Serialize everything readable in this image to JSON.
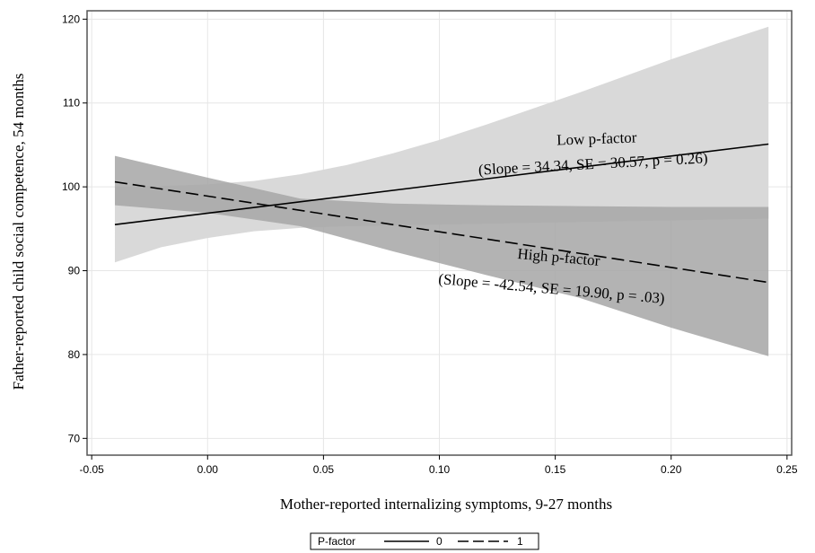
{
  "chart_data": {
    "type": "line",
    "xlabel": "Mother-reported internalizing symptoms, 9-27 months",
    "ylabel": "Father-reported child social competence, 54 months",
    "xlim": [
      -0.052,
      0.252
    ],
    "ylim": [
      68,
      121
    ],
    "xticks": [
      -0.05,
      0.0,
      0.05,
      0.1,
      0.15,
      0.2,
      0.25
    ],
    "xtick_labels": [
      "-0.05",
      "0.00",
      "0.05",
      "0.10",
      "0.15",
      "0.20",
      "0.25"
    ],
    "yticks": [
      70,
      80,
      90,
      100,
      110,
      120
    ],
    "ytick_labels": [
      "70",
      "80",
      "90",
      "100",
      "110",
      "120"
    ],
    "grid": true,
    "legend": {
      "title": "P-factor",
      "placement": "bottom-center",
      "entries": [
        {
          "label": "0",
          "style": "solid"
        },
        {
          "label": "1",
          "style": "dashed"
        }
      ]
    },
    "series": [
      {
        "label": "0",
        "line_style": "solid",
        "band_color": "#d9d9d9",
        "x": [
          -0.04,
          0.242
        ],
        "y": [
          95.5,
          105.1
        ],
        "ci_x": [
          -0.04,
          -0.02,
          0.0,
          0.02,
          0.04,
          0.06,
          0.08,
          0.1,
          0.12,
          0.14,
          0.16,
          0.18,
          0.2,
          0.22,
          0.242
        ],
        "ci_lower": [
          91.0,
          92.8,
          93.9,
          94.7,
          95.1,
          95.3,
          95.4,
          95.5,
          95.6,
          95.7,
          95.8,
          95.9,
          96.0,
          96.1,
          96.2
        ],
        "ci_upper": [
          100.0,
          100.1,
          100.3,
          100.7,
          101.5,
          102.6,
          104.0,
          105.6,
          107.4,
          109.3,
          111.2,
          113.2,
          115.2,
          117.1,
          119.1
        ]
      },
      {
        "label": "1",
        "line_style": "dashed",
        "band_color": "#a6a6a6",
        "x": [
          -0.04,
          0.242
        ],
        "y": [
          100.6,
          88.6
        ],
        "ci_x": [
          -0.04,
          0.0,
          0.04,
          0.08,
          0.12,
          0.16,
          0.2,
          0.242
        ],
        "ci_lower": [
          97.8,
          96.9,
          95.3,
          92.3,
          89.5,
          86.8,
          83.2,
          79.8
        ],
        "ci_upper": [
          103.7,
          101.1,
          98.6,
          98.0,
          97.8,
          97.7,
          97.6,
          97.6
        ]
      }
    ],
    "annotations": [
      {
        "line1": "Low p-factor",
        "line2": "(Slope = 34.34, SE = 30.57, p = 0.26)"
      },
      {
        "line1": "High p-factor",
        "line2": "(Slope = -42.54, SE = 19.90, p = .03)"
      }
    ]
  },
  "colors": {
    "plot_border": "#555555",
    "grid": "#e6e6e6",
    "line": "#000000"
  }
}
